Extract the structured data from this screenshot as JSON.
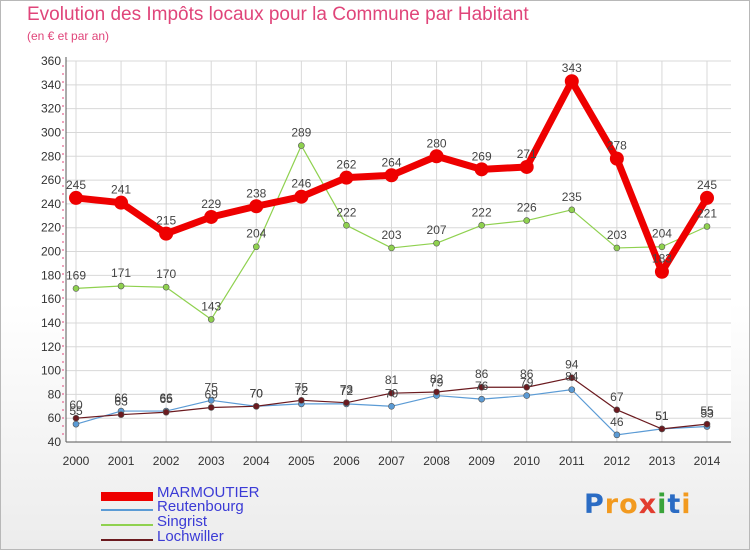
{
  "title": "Evolution des Impôts locaux pour la Commune par Habitant",
  "subtitle": "(en € et par an)",
  "logo": {
    "text": "Proxiti",
    "letters": [
      "P",
      "r",
      "o",
      "x",
      "i",
      "t",
      "i"
    ],
    "colors": [
      "#2b6cc4",
      "#f29a1f",
      "#f29a1f",
      "#e23c2f",
      "#3aa33a",
      "#2b6cc4",
      "#f29a1f"
    ]
  },
  "chart_data": {
    "type": "line",
    "title": "Evolution des Impôts locaux pour la Commune par Habitant",
    "ylabel": "(en € et par an)",
    "xlabel": "",
    "categories": [
      "2000",
      "2001",
      "2002",
      "2003",
      "2004",
      "2005",
      "2006",
      "2007",
      "2008",
      "2009",
      "2010",
      "2011",
      "2012",
      "2013",
      "2014"
    ],
    "ylim": [
      40,
      360
    ],
    "yticks": [
      40,
      60,
      80,
      100,
      120,
      140,
      160,
      180,
      200,
      220,
      240,
      260,
      280,
      300,
      320,
      340,
      360
    ],
    "grid": true,
    "series": [
      {
        "name": "MARMOUTIER",
        "color": "#ee0000",
        "width": 7,
        "marker": 7,
        "values": [
          245,
          241,
          215,
          229,
          238,
          246,
          262,
          264,
          280,
          269,
          271,
          343,
          278,
          183,
          245
        ]
      },
      {
        "name": "Reutenbourg",
        "color": "#5b9bd5",
        "width": 1.2,
        "marker": 3,
        "values": [
          55,
          66,
          66,
          75,
          70,
          72,
          72,
          70,
          79,
          76,
          79,
          84,
          46,
          51,
          53
        ]
      },
      {
        "name": "Singrist",
        "color": "#8fd14f",
        "width": 1.2,
        "marker": 3,
        "values": [
          169,
          171,
          170,
          143,
          204,
          289,
          222,
          203,
          207,
          222,
          226,
          235,
          203,
          204,
          221
        ]
      },
      {
        "name": "Lochwiller",
        "color": "#6b1a1f",
        "width": 1.2,
        "marker": 3,
        "values": [
          60,
          63,
          65,
          69,
          70,
          75,
          73,
          81,
          82,
          86,
          86,
          94,
          67,
          51,
          55
        ]
      }
    ]
  }
}
